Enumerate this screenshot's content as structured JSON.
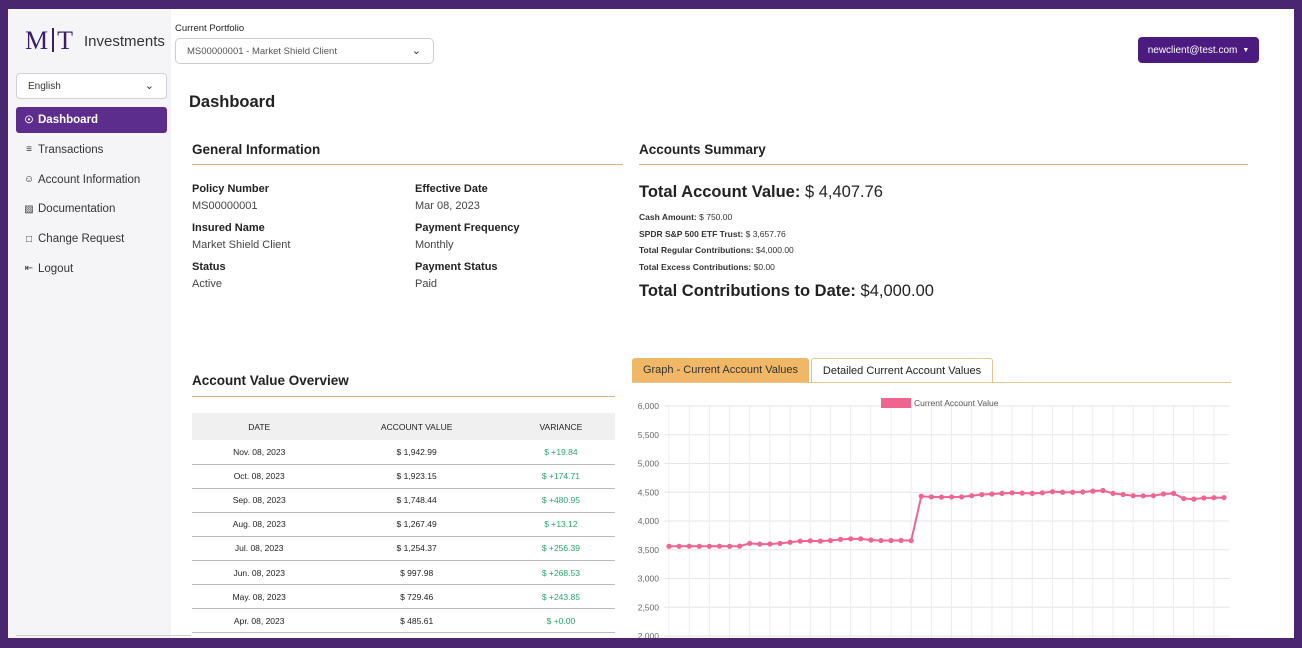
{
  "brand": {
    "mark_left": "M",
    "mark_right": "T",
    "name": "Investments"
  },
  "language": {
    "selected": "English"
  },
  "nav": [
    {
      "label": "Dashboard",
      "icon": "dashboard-icon",
      "active": true
    },
    {
      "label": "Transactions",
      "icon": "list-icon",
      "active": false
    },
    {
      "label": "Account Information",
      "icon": "user-circle-icon",
      "active": false
    },
    {
      "label": "Documentation",
      "icon": "id-badge-icon",
      "active": false
    },
    {
      "label": "Change Request",
      "icon": "document-icon",
      "active": false
    },
    {
      "label": "Logout",
      "icon": "logout-icon",
      "active": false
    }
  ],
  "portfolio": {
    "label": "Current Portfolio",
    "selected": "MS00000001 - Market Shield Client"
  },
  "user": {
    "email": "newclient@test.com"
  },
  "page": {
    "title": "Dashboard"
  },
  "general": {
    "title": "General Information",
    "policy_number_label": "Policy Number",
    "policy_number": "MS00000001",
    "effective_date_label": "Effective Date",
    "effective_date": "Mar 08, 2023",
    "insured_name_label": "Insured Name",
    "insured_name": "Market Shield Client",
    "payment_frequency_label": "Payment Frequency",
    "payment_frequency": "Monthly",
    "status_label": "Status",
    "status": "Active",
    "payment_status_label": "Payment Status",
    "payment_status": "Paid"
  },
  "accounts": {
    "title": "Accounts Summary",
    "total_value_label": "Total Account Value:",
    "total_value": "$ 4,407.76",
    "cash_label": "Cash Amount:",
    "cash": "$ 750.00",
    "spdr_label": "SPDR S&P 500 ETF Trust:",
    "spdr": "$ 3,657.76",
    "regular_label": "Total Regular Contributions:",
    "regular": "$4,000.00",
    "excess_label": "Total Excess Contributions:",
    "excess": "$0.00",
    "contrib_label": "Total Contributions to Date:",
    "contrib": "$4,000.00"
  },
  "overview": {
    "title": "Account Value Overview",
    "headers": [
      "DATE",
      "ACCOUNT VALUE",
      "VARIANCE"
    ],
    "rows": [
      {
        "date": "Nov. 08, 2023",
        "value": "$ 1,942.99",
        "variance": "$ +19.84"
      },
      {
        "date": "Oct. 08, 2023",
        "value": "$ 1,923.15",
        "variance": "$ +174.71"
      },
      {
        "date": "Sep. 08, 2023",
        "value": "$ 1,748.44",
        "variance": "$ +480.95"
      },
      {
        "date": "Aug. 08, 2023",
        "value": "$ 1,267.49",
        "variance": "$ +13.12"
      },
      {
        "date": "Jul. 08, 2023",
        "value": "$ 1,254.37",
        "variance": "$ +256.39"
      },
      {
        "date": "Jun. 08, 2023",
        "value": "$ 997.98",
        "variance": "$ +268.53"
      },
      {
        "date": "May. 08, 2023",
        "value": "$ 729.46",
        "variance": "$ +243.85"
      },
      {
        "date": "Apr. 08, 2023",
        "value": "$ 485.61",
        "variance": "$ +0.00"
      }
    ]
  },
  "tabs": {
    "graph": "Graph - Current Account Values",
    "detailed": "Detailed Current Account Values"
  },
  "colors": {
    "accent": "#5c2d8c",
    "tab_active": "#f0b766",
    "series": "#f06490",
    "positive": "#2aa56a"
  },
  "chart_data": {
    "type": "line",
    "series": [
      {
        "name": "Current Account Value",
        "values": [
          3560,
          3560,
          3562,
          3560,
          3560,
          3562,
          3560,
          3563,
          3610,
          3598,
          3600,
          3610,
          3630,
          3650,
          3655,
          3650,
          3660,
          3680,
          3690,
          3690,
          3670,
          3660,
          3660,
          3662,
          3658,
          4430,
          4420,
          4415,
          4418,
          4420,
          4440,
          4460,
          4470,
          4480,
          4490,
          4485,
          4480,
          4490,
          4510,
          4500,
          4500,
          4505,
          4520,
          4530,
          4480,
          4460,
          4440,
          4438,
          4440,
          4470,
          4480,
          4390,
          4380,
          4400,
          4405,
          4407
        ]
      }
    ],
    "yticks": [
      "6,000",
      "5,500",
      "5,000",
      "4,500",
      "4,000",
      "3,500",
      "3,000",
      "2,500",
      "2,000"
    ],
    "ylim": [
      2000,
      6000
    ],
    "grid": true,
    "legend": "top-center"
  }
}
